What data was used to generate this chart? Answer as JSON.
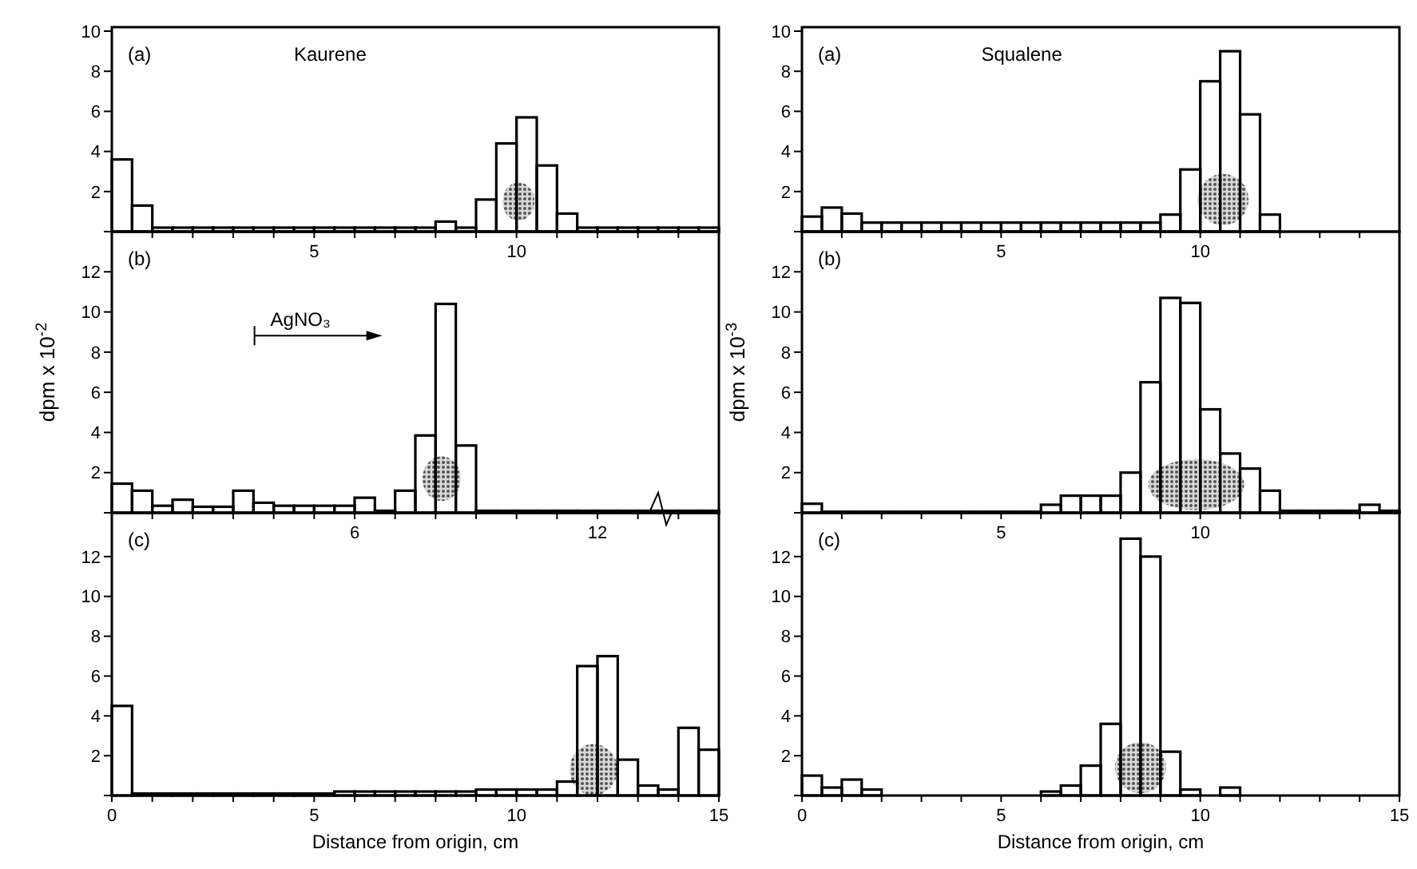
{
  "chart_data": [
    {
      "type": "histogram",
      "title": "Kaurene",
      "annotations": [
        "(a)"
      ],
      "color": "#000000",
      "bins": [
        0,
        0.5,
        1,
        1.5,
        2,
        2.5,
        3,
        3.5,
        4,
        4.5,
        5,
        5.5,
        6,
        6.5,
        7,
        7.5,
        8,
        8.5,
        9,
        9.5,
        10,
        10.5,
        11,
        11.5,
        12,
        12.5,
        13,
        13.5,
        14,
        14.5,
        15
      ],
      "values": [
        3.6,
        1.3,
        0.2,
        0.2,
        0.2,
        0.2,
        0.2,
        0.2,
        0.2,
        0.2,
        0.2,
        0.2,
        0.2,
        0.2,
        0.2,
        0.2,
        0.5,
        0.2,
        1.6,
        4.4,
        5.7,
        3.3,
        0.9,
        0.2,
        0.2,
        0.2,
        0.2,
        0.2,
        0.2,
        0.2
      ],
      "xlim": [
        0,
        15
      ],
      "xticks": [
        {
          "value": 1,
          "label": null
        },
        {
          "value": 2,
          "label": null
        },
        {
          "value": 3,
          "label": null
        },
        {
          "value": 4,
          "label": null
        },
        5,
        {
          "value": 6,
          "label": null
        },
        {
          "value": 7,
          "label": null
        },
        {
          "value": 8,
          "label": null
        },
        {
          "value": 9,
          "label": null
        },
        10,
        {
          "value": 11,
          "label": null
        },
        {
          "value": 12,
          "label": null
        },
        {
          "value": 13,
          "label": null
        },
        {
          "value": 14,
          "label": null
        }
      ],
      "ylim": [
        0,
        10.2
      ],
      "yticks": [
        2,
        4,
        6,
        8,
        10
      ]
    },
    {
      "type": "histogram",
      "title": "Squalene",
      "annotations": [
        "(a)"
      ],
      "color": "#000000",
      "bins": [
        0,
        0.5,
        1,
        1.5,
        2,
        2.5,
        3,
        3.5,
        4,
        4.5,
        5,
        5.5,
        6,
        6.5,
        7,
        7.5,
        8,
        8.5,
        9,
        9.5,
        10,
        10.5,
        11,
        11.5,
        12,
        12.5,
        13,
        13.5,
        14,
        14.5,
        15
      ],
      "values": [
        0.75,
        1.2,
        0.9,
        0.45,
        0.45,
        0.45,
        0.45,
        0.45,
        0.45,
        0.45,
        0.45,
        0.45,
        0.45,
        0.45,
        0.45,
        0.45,
        0.45,
        0.45,
        0.85,
        3.1,
        7.5,
        9.0,
        5.85,
        0.85,
        0,
        0,
        0,
        0,
        0,
        0
      ],
      "xlim": [
        0,
        15
      ],
      "xticks": [
        {
          "value": 1,
          "label": null
        },
        {
          "value": 2,
          "label": null
        },
        {
          "value": 3,
          "label": null
        },
        {
          "value": 4,
          "label": null
        },
        5,
        {
          "value": 6,
          "label": null
        },
        {
          "value": 7,
          "label": null
        },
        {
          "value": 8,
          "label": null
        },
        {
          "value": 9,
          "label": null
        },
        10,
        {
          "value": 11,
          "label": null
        },
        {
          "value": 12,
          "label": null
        },
        {
          "value": 13,
          "label": null
        },
        {
          "value": 14,
          "label": null
        }
      ],
      "ylim": [
        0,
        10.2
      ],
      "yticks": [
        2,
        4,
        6,
        8,
        10
      ]
    },
    {
      "type": "histogram",
      "ylabel": "dpm x 10$^{-2}$",
      "annotations": [
        "(b)",
        "AgNO₃"
      ],
      "color": "#000000",
      "bins": [
        0,
        0.5,
        1,
        1.5,
        2,
        2.5,
        3,
        3.5,
        4,
        4.5,
        5,
        5.5,
        6,
        6.5,
        7,
        7.5,
        8,
        8.5,
        9,
        9.5,
        10,
        10.5,
        11,
        11.5,
        12,
        12.5,
        13,
        13.5,
        14,
        14.5,
        15
      ],
      "values": [
        1.45,
        1.1,
        0.35,
        0.65,
        0.3,
        0.3,
        1.1,
        0.5,
        0.35,
        0.35,
        0.35,
        0.35,
        0.75,
        0.1,
        1.1,
        3.85,
        10.4,
        3.35,
        0.1,
        0.1,
        0.1,
        0.1,
        0.1,
        0.1,
        0.1,
        0.1,
        0.1,
        0.1,
        0.1,
        0.1
      ],
      "xlim": [
        0,
        15
      ],
      "xticks": [
        {
          "value": 1,
          "label": null
        },
        {
          "value": 2,
          "label": null
        },
        {
          "value": 3,
          "label": null
        },
        {
          "value": 4,
          "label": null
        },
        {
          "value": 5,
          "label": null
        },
        6,
        {
          "value": 7,
          "label": null
        },
        {
          "value": 8,
          "label": null
        },
        {
          "value": 9,
          "label": null
        },
        {
          "value": 10,
          "label": null
        },
        {
          "value": 11,
          "label": null
        },
        12,
        {
          "value": 13,
          "label": null
        },
        {
          "value": 14,
          "label": null
        }
      ],
      "ylim": [
        0,
        14
      ],
      "yticks": [
        2,
        4,
        6,
        8,
        10,
        12
      ]
    },
    {
      "type": "histogram",
      "ylabel": "dpm x 10$^{-3}$",
      "annotations": [
        "(b)"
      ],
      "color": "#000000",
      "bins": [
        0,
        0.5,
        1,
        1.5,
        2,
        2.5,
        3,
        3.5,
        4,
        4.5,
        5,
        5.5,
        6,
        6.5,
        7,
        7.5,
        8,
        8.5,
        9,
        9.5,
        10,
        10.5,
        11,
        11.5,
        12,
        12.5,
        13,
        13.5,
        14,
        14.5,
        15
      ],
      "values": [
        0.45,
        0.05,
        0.05,
        0.05,
        0.05,
        0.05,
        0.05,
        0.05,
        0.05,
        0.05,
        0.05,
        0.05,
        0.4,
        0.85,
        0.85,
        0.85,
        2.0,
        6.5,
        10.7,
        10.45,
        5.15,
        2.95,
        2.2,
        1.1,
        0.1,
        0.1,
        0.1,
        0.1,
        0.4,
        0.1
      ],
      "xlim": [
        0,
        15
      ],
      "xticks": [
        {
          "value": 1,
          "label": null
        },
        {
          "value": 2,
          "label": null
        },
        {
          "value": 3,
          "label": null
        },
        {
          "value": 4,
          "label": null
        },
        5,
        {
          "value": 6,
          "label": null
        },
        {
          "value": 7,
          "label": null
        },
        {
          "value": 8,
          "label": null
        },
        {
          "value": 9,
          "label": null
        },
        10,
        {
          "value": 11,
          "label": null
        },
        {
          "value": 12,
          "label": null
        },
        {
          "value": 13,
          "label": null
        },
        {
          "value": 14,
          "label": null
        }
      ],
      "ylim": [
        0,
        14
      ],
      "yticks": [
        2,
        4,
        6,
        8,
        10,
        12
      ]
    },
    {
      "type": "histogram",
      "xlabel": "Distance from origin, cm",
      "annotations": [
        "(c)"
      ],
      "color": "#000000",
      "bins": [
        0,
        0.5,
        1,
        1.5,
        2,
        2.5,
        3,
        3.5,
        4,
        4.5,
        5,
        5.5,
        6,
        6.5,
        7,
        7.5,
        8,
        8.5,
        9,
        9.5,
        10,
        10.5,
        11,
        11.5,
        12,
        12.5,
        13,
        13.5,
        14,
        14.5,
        15
      ],
      "values": [
        4.5,
        0.1,
        0.1,
        0.1,
        0.1,
        0.1,
        0.1,
        0.1,
        0.1,
        0.1,
        0.1,
        0.2,
        0.2,
        0.2,
        0.2,
        0.2,
        0.2,
        0.2,
        0.3,
        0.3,
        0.3,
        0.3,
        0.7,
        6.5,
        7.0,
        1.8,
        0.5,
        0.3,
        3.4,
        2.3
      ],
      "xlim": [
        0,
        15
      ],
      "xticks": [
        0,
        {
          "value": 1,
          "label": null
        },
        {
          "value": 2,
          "label": null
        },
        {
          "value": 3,
          "label": null
        },
        {
          "value": 4,
          "label": null
        },
        5,
        {
          "value": 6,
          "label": null
        },
        {
          "value": 7,
          "label": null
        },
        {
          "value": 8,
          "label": null
        },
        {
          "value": 9,
          "label": null
        },
        10,
        {
          "value": 11,
          "label": null
        },
        {
          "value": 12,
          "label": null
        },
        {
          "value": 13,
          "label": null
        },
        {
          "value": 14,
          "label": null
        },
        15
      ],
      "ylim": [
        0,
        14.2
      ],
      "yticks": [
        2,
        4,
        6,
        8,
        10,
        12
      ]
    },
    {
      "type": "histogram",
      "xlabel": "Distance from origin, cm",
      "annotations": [
        "(c)"
      ],
      "color": "#000000",
      "bins": [
        0,
        0.5,
        1,
        1.5,
        2,
        2.5,
        3,
        3.5,
        4,
        4.5,
        5,
        5.5,
        6,
        6.5,
        7,
        7.5,
        8,
        8.5,
        9,
        9.5,
        10,
        10.5,
        11,
        11.5,
        12,
        12.5,
        13,
        13.5,
        14,
        14.5,
        15
      ],
      "values": [
        1.0,
        0.4,
        0.8,
        0.3,
        0,
        0,
        0,
        0,
        0,
        0,
        0,
        0,
        0.2,
        0.5,
        1.5,
        3.6,
        12.9,
        12,
        2.2,
        0.3,
        0,
        0.4,
        0,
        0,
        0,
        0,
        0,
        0,
        0,
        0
      ],
      "xlim": [
        0,
        15
      ],
      "xticks": [
        0,
        {
          "value": 1,
          "label": null
        },
        {
          "value": 2,
          "label": null
        },
        {
          "value": 3,
          "label": null
        },
        {
          "value": 4,
          "label": null
        },
        5,
        {
          "value": 6,
          "label": null
        },
        {
          "value": 7,
          "label": null
        },
        {
          "value": 8,
          "label": null
        },
        {
          "value": 9,
          "label": null
        },
        10,
        {
          "value": 11,
          "label": null
        },
        {
          "value": 12,
          "label": null
        },
        {
          "value": 13,
          "label": null
        },
        {
          "value": 14,
          "label": null
        },
        15
      ],
      "ylim": [
        0,
        14.2
      ],
      "yticks": [
        2,
        4,
        6,
        8,
        10,
        12
      ]
    }
  ]
}
